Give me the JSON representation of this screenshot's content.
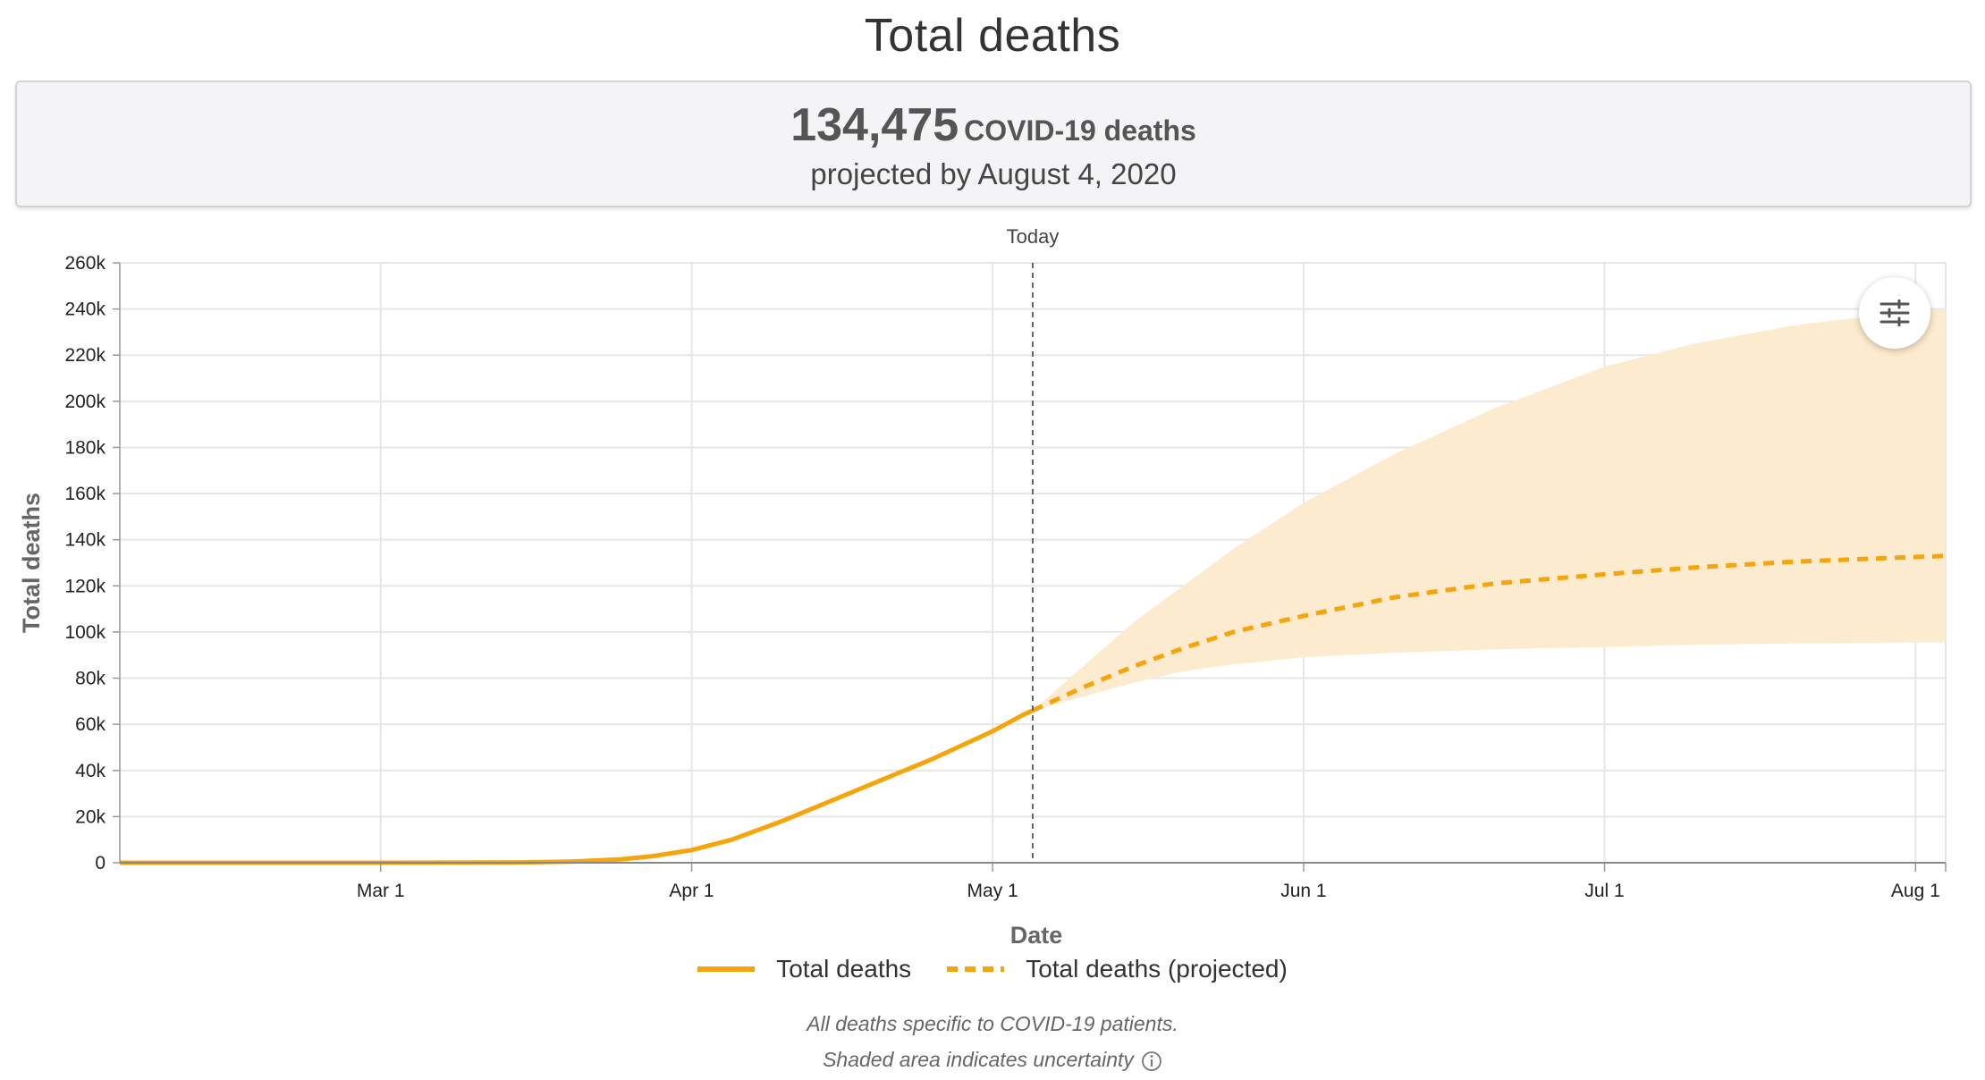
{
  "page": {
    "title": "Total deaths"
  },
  "summary": {
    "number": "134,475",
    "unit": "COVID-19 deaths",
    "subtitle": "projected by August 4, 2020"
  },
  "settings_icon": "sliders-icon",
  "legend": [
    {
      "label": "Total deaths",
      "style": "solid"
    },
    {
      "label": "Total deaths (projected)",
      "style": "dashed"
    }
  ],
  "footnotes": {
    "line1": "All deaths specific to COVID-19 patients.",
    "line2": "Shaded area indicates uncertainty",
    "info_icon": "info-icon"
  },
  "colors": {
    "line": "#f5a40a",
    "band": "#fdebd0",
    "grid": "#e6e6e6",
    "today_line": "#666666"
  },
  "chart_data": {
    "type": "line",
    "xlabel": "Date",
    "ylabel": "Total deaths",
    "x_type": "date",
    "xlim": [
      "2020-02-04",
      "2020-08-04"
    ],
    "ylim": [
      0,
      260000
    ],
    "x_ticks": [
      {
        "date": "2020-03-01",
        "label": "Mar 1"
      },
      {
        "date": "2020-04-01",
        "label": "Apr 1"
      },
      {
        "date": "2020-05-01",
        "label": "May 1"
      },
      {
        "date": "2020-06-01",
        "label": "Jun 1"
      },
      {
        "date": "2020-07-01",
        "label": "Jul 1"
      },
      {
        "date": "2020-08-01",
        "label": "Aug 1"
      }
    ],
    "y_ticks": [
      {
        "value": 0,
        "label": "0"
      },
      {
        "value": 20000,
        "label": "20k"
      },
      {
        "value": 40000,
        "label": "40k"
      },
      {
        "value": 60000,
        "label": "60k"
      },
      {
        "value": 80000,
        "label": "80k"
      },
      {
        "value": 100000,
        "label": "100k"
      },
      {
        "value": 120000,
        "label": "120k"
      },
      {
        "value": 140000,
        "label": "140k"
      },
      {
        "value": 160000,
        "label": "160k"
      },
      {
        "value": 180000,
        "label": "180k"
      },
      {
        "value": 200000,
        "label": "200k"
      },
      {
        "value": 220000,
        "label": "220k"
      },
      {
        "value": 240000,
        "label": "240k"
      },
      {
        "value": 260000,
        "label": "260k"
      }
    ],
    "grid": true,
    "legend_position": "bottom",
    "today": {
      "date": "2020-05-05",
      "label": "Today"
    },
    "series": [
      {
        "name": "Total deaths",
        "style": "solid",
        "points": [
          [
            "2020-02-04",
            0
          ],
          [
            "2020-02-20",
            0
          ],
          [
            "2020-03-01",
            0
          ],
          [
            "2020-03-10",
            50
          ],
          [
            "2020-03-15",
            150
          ],
          [
            "2020-03-20",
            500
          ],
          [
            "2020-03-25",
            1500
          ],
          [
            "2020-03-28",
            2800
          ],
          [
            "2020-04-01",
            5500
          ],
          [
            "2020-04-05",
            10000
          ],
          [
            "2020-04-10",
            18000
          ],
          [
            "2020-04-15",
            27000
          ],
          [
            "2020-04-20",
            36000
          ],
          [
            "2020-04-25",
            45000
          ],
          [
            "2020-04-30",
            55000
          ],
          [
            "2020-05-01",
            57000
          ],
          [
            "2020-05-04",
            64000
          ],
          [
            "2020-05-05",
            66000
          ]
        ]
      },
      {
        "name": "Total deaths (projected)",
        "style": "dashed",
        "points": [
          [
            "2020-05-05",
            66000
          ],
          [
            "2020-05-08",
            72000
          ],
          [
            "2020-05-10",
            76000
          ],
          [
            "2020-05-15",
            85000
          ],
          [
            "2020-05-20",
            93000
          ],
          [
            "2020-05-25",
            100000
          ],
          [
            "2020-06-01",
            107000
          ],
          [
            "2020-06-10",
            115000
          ],
          [
            "2020-06-20",
            121000
          ],
          [
            "2020-07-01",
            125000
          ],
          [
            "2020-07-10",
            128000
          ],
          [
            "2020-07-20",
            130500
          ],
          [
            "2020-08-01",
            132500
          ],
          [
            "2020-08-04",
            133000
          ]
        ]
      }
    ],
    "uncertainty_band": {
      "points": [
        [
          "2020-05-05",
          66000,
          66000
        ],
        [
          "2020-05-10",
          72000,
          85000
        ],
        [
          "2020-05-15",
          78000,
          104000
        ],
        [
          "2020-05-20",
          83000,
          120000
        ],
        [
          "2020-05-25",
          86000,
          136000
        ],
        [
          "2020-06-01",
          89000,
          156000
        ],
        [
          "2020-06-10",
          91000,
          177000
        ],
        [
          "2020-06-20",
          92500,
          197000
        ],
        [
          "2020-07-01",
          93500,
          215000
        ],
        [
          "2020-07-10",
          94500,
          225000
        ],
        [
          "2020-07-20",
          95000,
          233000
        ],
        [
          "2020-08-01",
          95500,
          239000
        ],
        [
          "2020-08-04",
          95500,
          240000
        ]
      ]
    }
  }
}
